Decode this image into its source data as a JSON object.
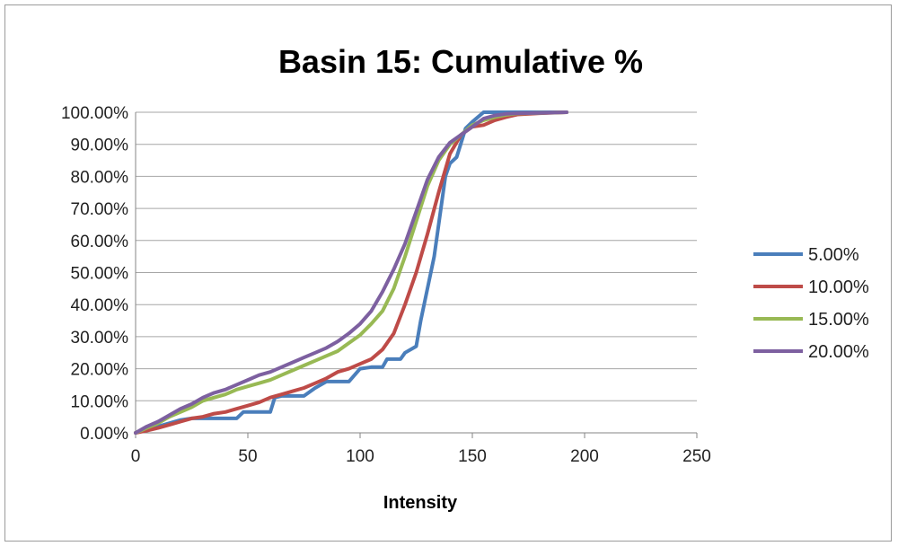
{
  "chart_data": {
    "type": "line",
    "title": "Basin 15: Cumulative %",
    "xlabel": "Intensity",
    "ylabel": "",
    "xlim": [
      0,
      250
    ],
    "ylim": [
      0,
      100
    ],
    "x_ticks": [
      "0",
      "50",
      "100",
      "150",
      "200",
      "250"
    ],
    "y_ticks": [
      "0.00%",
      "10.00%",
      "20.00%",
      "30.00%",
      "40.00%",
      "50.00%",
      "60.00%",
      "70.00%",
      "80.00%",
      "90.00%",
      "100.00%"
    ],
    "grid": true,
    "legend_position": "right",
    "series": [
      {
        "name": "5.00%",
        "color": "#4a7ebb",
        "points": [
          [
            0,
            0
          ],
          [
            5,
            1
          ],
          [
            10,
            2
          ],
          [
            15,
            3
          ],
          [
            20,
            4
          ],
          [
            25,
            4.5
          ],
          [
            30,
            4.5
          ],
          [
            35,
            4.5
          ],
          [
            40,
            4.5
          ],
          [
            45,
            4.5
          ],
          [
            48,
            6.5
          ],
          [
            52,
            6.5
          ],
          [
            55,
            6.5
          ],
          [
            60,
            6.5
          ],
          [
            62,
            11
          ],
          [
            65,
            11.5
          ],
          [
            70,
            11.5
          ],
          [
            75,
            11.5
          ],
          [
            80,
            14
          ],
          [
            85,
            16
          ],
          [
            90,
            16
          ],
          [
            95,
            16
          ],
          [
            100,
            20
          ],
          [
            105,
            20.5
          ],
          [
            110,
            20.5
          ],
          [
            112,
            23
          ],
          [
            115,
            23
          ],
          [
            118,
            23
          ],
          [
            120,
            25
          ],
          [
            125,
            27
          ],
          [
            127,
            35
          ],
          [
            130,
            45
          ],
          [
            133,
            55
          ],
          [
            135,
            65
          ],
          [
            138,
            80
          ],
          [
            140,
            84
          ],
          [
            143,
            86
          ],
          [
            147,
            95
          ],
          [
            150,
            97
          ],
          [
            155,
            100
          ],
          [
            192,
            100
          ]
        ]
      },
      {
        "name": "10.00%",
        "color": "#be4b48",
        "points": [
          [
            0,
            0
          ],
          [
            5,
            0.7
          ],
          [
            10,
            1.5
          ],
          [
            15,
            2.5
          ],
          [
            20,
            3.5
          ],
          [
            25,
            4.5
          ],
          [
            30,
            5
          ],
          [
            35,
            6
          ],
          [
            40,
            6.5
          ],
          [
            45,
            7.5
          ],
          [
            50,
            8.5
          ],
          [
            55,
            9.5
          ],
          [
            60,
            11
          ],
          [
            65,
            12
          ],
          [
            70,
            13
          ],
          [
            75,
            14
          ],
          [
            80,
            15.5
          ],
          [
            85,
            17
          ],
          [
            90,
            19
          ],
          [
            95,
            20
          ],
          [
            100,
            21.5
          ],
          [
            105,
            23
          ],
          [
            110,
            26
          ],
          [
            115,
            31
          ],
          [
            120,
            40
          ],
          [
            125,
            50
          ],
          [
            130,
            62
          ],
          [
            135,
            75
          ],
          [
            140,
            87
          ],
          [
            145,
            93
          ],
          [
            150,
            95.5
          ],
          [
            155,
            96
          ],
          [
            160,
            97.5
          ],
          [
            165,
            98.5
          ],
          [
            170,
            99.3
          ],
          [
            180,
            99.7
          ],
          [
            192,
            100
          ]
        ]
      },
      {
        "name": "15.00%",
        "color": "#98b954",
        "points": [
          [
            0,
            0
          ],
          [
            5,
            1.5
          ],
          [
            10,
            3
          ],
          [
            15,
            5
          ],
          [
            20,
            6.5
          ],
          [
            25,
            8
          ],
          [
            30,
            10
          ],
          [
            35,
            11
          ],
          [
            40,
            12
          ],
          [
            45,
            13.5
          ],
          [
            50,
            14.5
          ],
          [
            55,
            15.5
          ],
          [
            60,
            16.5
          ],
          [
            65,
            18
          ],
          [
            70,
            19.5
          ],
          [
            75,
            21
          ],
          [
            80,
            22.5
          ],
          [
            85,
            24
          ],
          [
            90,
            25.5
          ],
          [
            95,
            28
          ],
          [
            100,
            30.5
          ],
          [
            105,
            34
          ],
          [
            110,
            38
          ],
          [
            115,
            45
          ],
          [
            120,
            55
          ],
          [
            125,
            66
          ],
          [
            130,
            77
          ],
          [
            135,
            85
          ],
          [
            140,
            90
          ],
          [
            145,
            93
          ],
          [
            150,
            96
          ],
          [
            155,
            97.5
          ],
          [
            160,
            98.5
          ],
          [
            165,
            99.2
          ],
          [
            170,
            99.6
          ],
          [
            180,
            99.8
          ],
          [
            192,
            100
          ]
        ]
      },
      {
        "name": "20.00%",
        "color": "#7d60a0",
        "points": [
          [
            0,
            0
          ],
          [
            5,
            2
          ],
          [
            10,
            3.5
          ],
          [
            15,
            5.5
          ],
          [
            20,
            7.5
          ],
          [
            25,
            9
          ],
          [
            30,
            11
          ],
          [
            35,
            12.5
          ],
          [
            40,
            13.5
          ],
          [
            45,
            15
          ],
          [
            50,
            16.5
          ],
          [
            55,
            18
          ],
          [
            60,
            19
          ],
          [
            65,
            20.5
          ],
          [
            70,
            22
          ],
          [
            75,
            23.5
          ],
          [
            80,
            25
          ],
          [
            85,
            26.5
          ],
          [
            90,
            28.5
          ],
          [
            95,
            31
          ],
          [
            100,
            34
          ],
          [
            105,
            38
          ],
          [
            110,
            44
          ],
          [
            115,
            51
          ],
          [
            120,
            59
          ],
          [
            125,
            69
          ],
          [
            130,
            79
          ],
          [
            135,
            86
          ],
          [
            140,
            90.5
          ],
          [
            145,
            93
          ],
          [
            150,
            95.5
          ],
          [
            155,
            98
          ],
          [
            160,
            99
          ],
          [
            165,
            99.5
          ],
          [
            170,
            99.7
          ],
          [
            180,
            99.8
          ],
          [
            192,
            100
          ]
        ]
      }
    ]
  }
}
